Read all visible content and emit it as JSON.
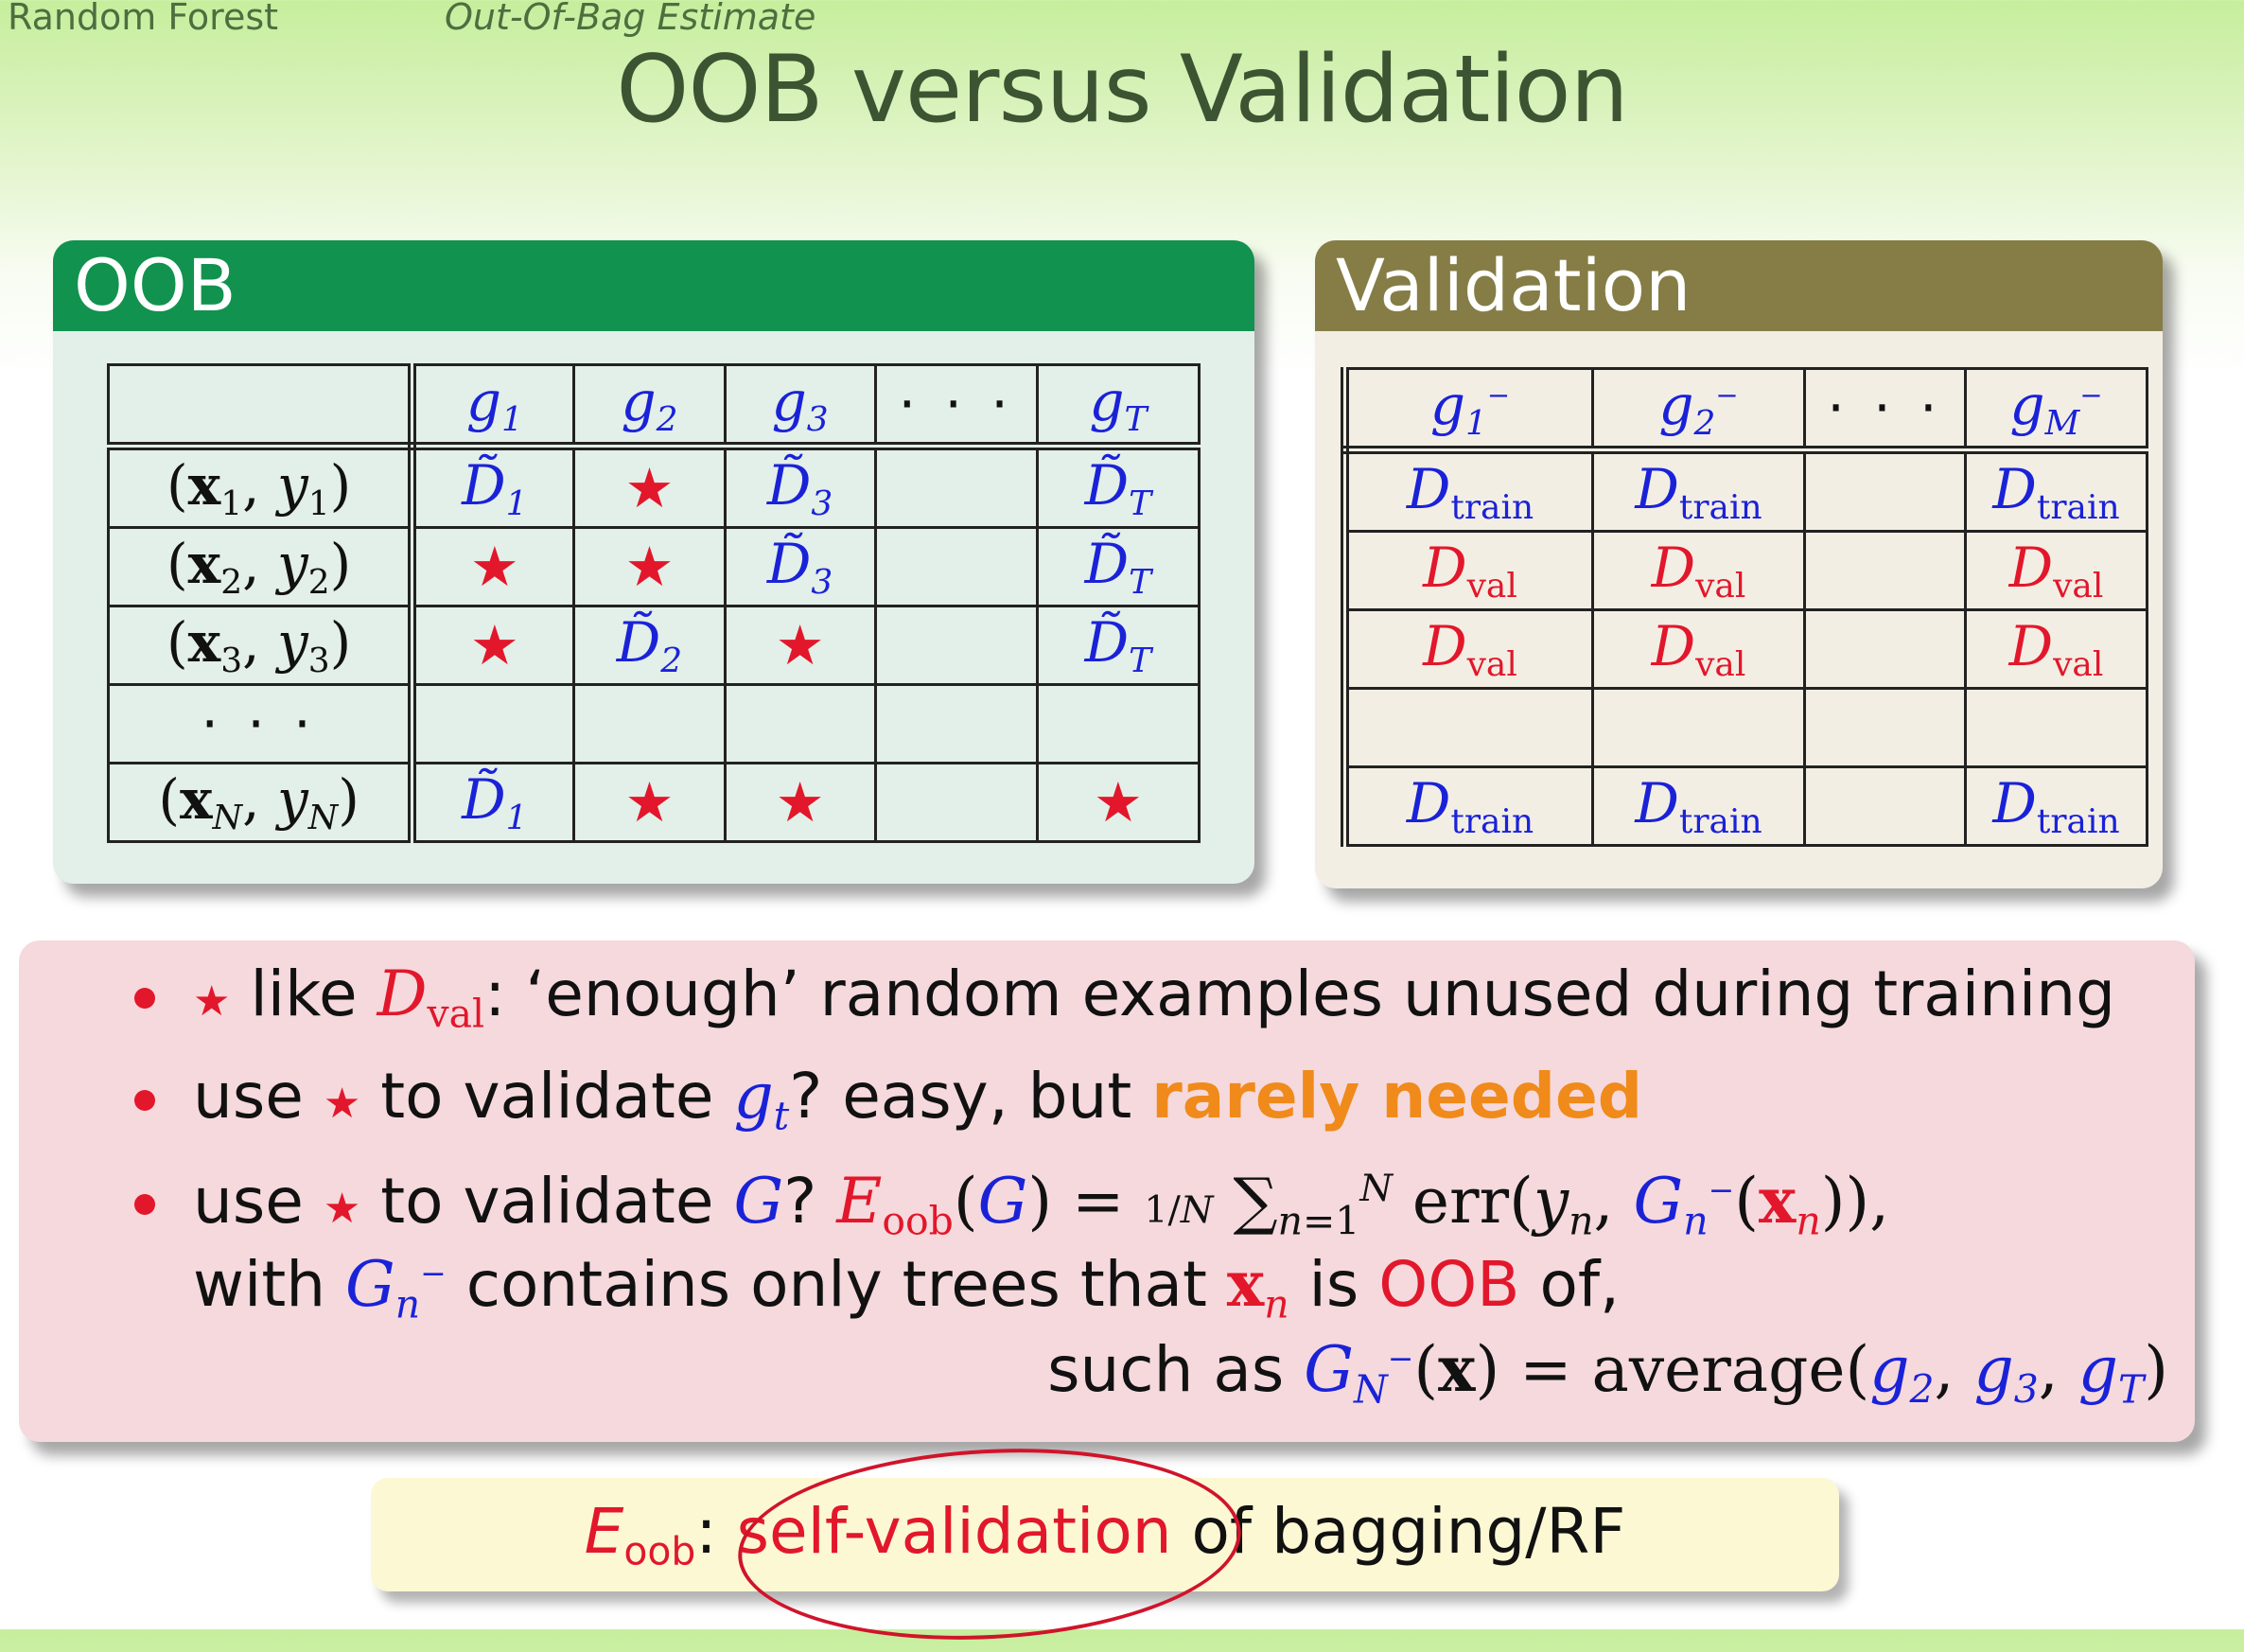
{
  "header": {
    "nav_left": "Random Forest",
    "nav_right": "Out-Of-Bag Estimate",
    "title": "OOB versus Validation"
  },
  "oob_panel": {
    "heading": "OOB",
    "columns": [
      "g1",
      "g2",
      "g3",
      "· · ·",
      "gT"
    ],
    "rows": [
      {
        "label": "(x1, y1)",
        "cells": [
          "D̃1",
          "★",
          "D̃3",
          "",
          "D̃T"
        ]
      },
      {
        "label": "(x2, y2)",
        "cells": [
          "★",
          "★",
          "D̃3",
          "",
          "D̃T"
        ]
      },
      {
        "label": "(x3, y3)",
        "cells": [
          "★",
          "D̃2",
          "★",
          "",
          "D̃T"
        ]
      },
      {
        "label": "· · ·",
        "cells": [
          "",
          "",
          "",
          "",
          ""
        ]
      },
      {
        "label": "(xN, yN)",
        "cells": [
          "D̃1",
          "★",
          "★",
          "",
          "★"
        ]
      }
    ]
  },
  "validation_panel": {
    "heading": "Validation",
    "columns": [
      "g1−",
      "g2−",
      "· · ·",
      "gM−"
    ],
    "rows": [
      [
        "Dtrain",
        "Dtrain",
        "",
        "Dtrain"
      ],
      [
        "Dval",
        "Dval",
        "",
        "Dval"
      ],
      [
        "Dval",
        "Dval",
        "",
        "Dval"
      ],
      [
        "",
        "",
        "",
        ""
      ],
      [
        "Dtrain",
        "Dtrain",
        "",
        "Dtrain"
      ]
    ]
  },
  "bullets": {
    "b1_like": "like",
    "b1_rest": ": ‘enough’ random examples unused during training",
    "b2_a": "use",
    "b2_b": "to validate",
    "b2_c": "? easy, but",
    "b2_highlight": "rarely needed",
    "b3_a": "use",
    "b3_b": "to validate",
    "b3_c": "?",
    "b3_line2_a": "with",
    "b3_line2_b": "contains only trees that",
    "b3_line2_c": "is",
    "b3_line2_oob": "OOB",
    "b3_line2_d": "of,",
    "b3_line3_a": "such as",
    "b3_line3_b": "= average("
  },
  "summary": {
    "eoob": "E",
    "sub": "oob",
    "colon": ":",
    "highlight": "self-validation",
    "rest": " of bagging/RF"
  },
  "colors": {
    "oob_header": "#12924f",
    "validation_header": "#857d45",
    "accent_red": "#e2172b",
    "accent_blue": "#1a22d8",
    "accent_orange": "#f08a1a"
  }
}
